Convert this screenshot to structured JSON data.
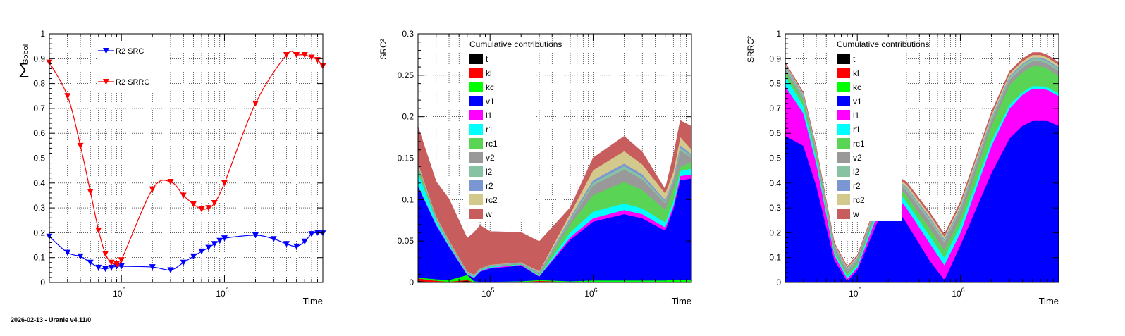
{
  "footer": "2026-02-13 - Uranie v4.11/0",
  "colors": {
    "src": "#0000ff",
    "srrc": "#ff0000",
    "t": "#000000",
    "kl": "#ff0000",
    "kc": "#00ff00",
    "v1": "#0000ff",
    "l1": "#ff00ff",
    "r1": "#00ffff",
    "rc1": "#59d454",
    "v2": "#999999",
    "l2": "#87c3a3",
    "r2": "#7b97d3",
    "rc2": "#d3c98c",
    "w": "#c75d5d"
  },
  "chart_data": [
    {
      "type": "line",
      "title": "",
      "xlabel": "Time",
      "ylabel": "∑ Sobol",
      "xscale": "log",
      "xlim": [
        20000,
        9000000
      ],
      "ylim": [
        0,
        1
      ],
      "yticks": [
        "0",
        "0.1",
        "0.2",
        "0.3",
        "0.4",
        "0.5",
        "0.6",
        "0.7",
        "0.8",
        "0.9",
        "1"
      ],
      "xticks": [
        [
          "10",
          "5"
        ],
        [
          "10",
          "6"
        ]
      ],
      "grid": true,
      "legend_position": "top-left",
      "series": [
        {
          "name": "R2 SRC",
          "x": [
            20000,
            30000,
            40000,
            50000,
            60000,
            70000,
            80000,
            90000,
            100000,
            200000,
            300000,
            400000,
            500000,
            600000,
            700000,
            800000,
            900000,
            1000000,
            2000000,
            3000000,
            4000000,
            5000000,
            6000000,
            7000000,
            8000000,
            9000000
          ],
          "y": [
            0.185,
            0.12,
            0.105,
            0.08,
            0.06,
            0.055,
            0.06,
            0.065,
            0.065,
            0.062,
            0.05,
            0.08,
            0.105,
            0.125,
            0.14,
            0.155,
            0.168,
            0.178,
            0.19,
            0.175,
            0.155,
            0.145,
            0.165,
            0.195,
            0.2,
            0.198
          ]
        },
        {
          "name": "R2 SRRC",
          "x": [
            20000,
            30000,
            40000,
            50000,
            60000,
            70000,
            80000,
            90000,
            100000,
            200000,
            300000,
            400000,
            500000,
            600000,
            700000,
            800000,
            1000000,
            2000000,
            4000000,
            5000000,
            6000000,
            7000000,
            8000000,
            9000000
          ],
          "y": [
            0.885,
            0.75,
            0.55,
            0.365,
            0.21,
            0.115,
            0.08,
            0.075,
            0.09,
            0.375,
            0.405,
            0.35,
            0.315,
            0.295,
            0.3,
            0.32,
            0.4,
            0.72,
            0.915,
            0.915,
            0.915,
            0.905,
            0.895,
            0.87
          ]
        }
      ]
    },
    {
      "type": "area",
      "stacked": true,
      "title": "",
      "xlabel": "Time",
      "ylabel": "SRC²",
      "xscale": "log",
      "xlim": [
        20000,
        9000000
      ],
      "ylim": [
        0,
        0.3
      ],
      "yticks": [
        "0",
        "0.05",
        "0.1",
        "0.15",
        "0.2",
        "0.25",
        "0.3"
      ],
      "xticks": [
        [
          "10",
          "5"
        ],
        [
          "10",
          "6"
        ]
      ],
      "grid": true,
      "legend_title": "Cumulative contributions",
      "legend_position": "top-left",
      "x": [
        20000,
        30000,
        40000,
        60000,
        70000,
        80000,
        100000,
        200000,
        300000,
        600000,
        1000000,
        2000000,
        3000000,
        5000000,
        6000000,
        7000000,
        9000000
      ],
      "series": [
        {
          "name": "t",
          "values": [
            0.002,
            0.0,
            0.0,
            0.002,
            0.0,
            0.0,
            0.0,
            0.0,
            0.0,
            0.0,
            0.0,
            0.0,
            0.0,
            0.0,
            0.0,
            0.0,
            0.0
          ]
        },
        {
          "name": "kl",
          "values": [
            0.003,
            0.002,
            0.001,
            0.001,
            0.0005,
            0.0005,
            0.0005,
            0.0005,
            0.002,
            0.0005,
            0.0005,
            0.0005,
            0.0005,
            0.0005,
            0.0005,
            0.0005,
            0.0005
          ]
        },
        {
          "name": "kc",
          "values": [
            0.001,
            0.002,
            0.002,
            0.006,
            0.001,
            0.0005,
            0.0005,
            0.001,
            0.001,
            0.001,
            0.002,
            0.002,
            0.002,
            0.002,
            0.003,
            0.003,
            0.002
          ]
        },
        {
          "name": "v1",
          "values": [
            0.11,
            0.065,
            0.04,
            0.0,
            0.004,
            0.012,
            0.016,
            0.019,
            0.004,
            0.05,
            0.071,
            0.08,
            0.075,
            0.06,
            0.085,
            0.12,
            0.123
          ]
        },
        {
          "name": "l1",
          "values": [
            0.001,
            0.001,
            0.001,
            0.001,
            0.0005,
            0.0005,
            0.001,
            0.001,
            0.0005,
            0.003,
            0.004,
            0.005,
            0.005,
            0.004,
            0.004,
            0.005,
            0.005
          ]
        },
        {
          "name": "r1",
          "values": [
            0.016,
            0.005,
            0.002,
            0.001,
            0.001,
            0.001,
            0.001,
            0.0005,
            0.001,
            0.006,
            0.008,
            0.008,
            0.007,
            0.006,
            0.006,
            0.006,
            0.007
          ]
        },
        {
          "name": "rc1",
          "values": [
            0.005,
            0.001,
            0.001,
            0.0005,
            0.0005,
            0.0005,
            0.0005,
            0.0005,
            0.001,
            0.01,
            0.02,
            0.026,
            0.022,
            0.015,
            0.015,
            0.005,
            0.008
          ]
        },
        {
          "name": "v2",
          "values": [
            0.002,
            0.001,
            0.001,
            0.0005,
            0.0005,
            0.0005,
            0.0005,
            0.0005,
            0.001,
            0.004,
            0.012,
            0.015,
            0.013,
            0.008,
            0.008,
            0.02,
            0.005
          ]
        },
        {
          "name": "l2",
          "values": [
            0.001,
            0.001,
            0.001,
            0.0005,
            0.0005,
            0.0005,
            0.0005,
            0.0005,
            0.001,
            0.002,
            0.003,
            0.004,
            0.003,
            0.002,
            0.002,
            0.003,
            0.002
          ]
        },
        {
          "name": "r2",
          "values": [
            0.001,
            0.001,
            0.001,
            0.0005,
            0.0005,
            0.0005,
            0.0005,
            0.0005,
            0.001,
            0.002,
            0.003,
            0.003,
            0.003,
            0.002,
            0.002,
            0.003,
            0.002
          ]
        },
        {
          "name": "rc2",
          "values": [
            0.002,
            0.001,
            0.001,
            0.0005,
            0.0005,
            0.0005,
            0.0005,
            0.0005,
            0.001,
            0.005,
            0.012,
            0.015,
            0.012,
            0.008,
            0.008,
            0.01,
            0.006
          ]
        },
        {
          "name": "w",
          "values": [
            0.044,
            0.042,
            0.05,
            0.04,
            0.051,
            0.052,
            0.04,
            0.036,
            0.036,
            0.007,
            0.015,
            0.018,
            0.015,
            0.005,
            0.02,
            0.02,
            0.028
          ]
        }
      ]
    },
    {
      "type": "area",
      "stacked": true,
      "title": "",
      "xlabel": "Time",
      "ylabel": "SRRC²",
      "xscale": "log",
      "xlim": [
        20000,
        9000000
      ],
      "ylim": [
        0,
        1
      ],
      "yticks": [
        "0",
        "0.1",
        "0.2",
        "0.3",
        "0.4",
        "0.5",
        "0.6",
        "0.7",
        "0.8",
        "0.9",
        "1"
      ],
      "xticks": [
        [
          "10",
          "5"
        ],
        [
          "10",
          "6"
        ]
      ],
      "grid": true,
      "legend_title": "Cumulative contributions",
      "legend_position": "top-left",
      "x": [
        20000,
        30000,
        40000,
        60000,
        80000,
        100000,
        200000,
        300000,
        500000,
        700000,
        1000000,
        2000000,
        3000000,
        4000000,
        5000000,
        6000000,
        7000000,
        9000000
      ],
      "series": [
        {
          "name": "t",
          "values": [
            0.0,
            0.0,
            0.0,
            0.0,
            0.0,
            0.0,
            0.0,
            0.0,
            0.0,
            0.0,
            0.0,
            0.0,
            0.0,
            0.0,
            0.0,
            0.0,
            0.0,
            0.0
          ]
        },
        {
          "name": "kl",
          "values": [
            0.0,
            0.0,
            0.0,
            0.0,
            0.0,
            0.0,
            0.0,
            0.0,
            0.0,
            0.0,
            0.0,
            0.0,
            0.0,
            0.0,
            0.0,
            0.0,
            0.0,
            0.0
          ]
        },
        {
          "name": "kc",
          "values": [
            0.002,
            0.002,
            0.002,
            0.002,
            0.002,
            0.002,
            0.002,
            0.002,
            0.002,
            0.002,
            0.002,
            0.002,
            0.002,
            0.002,
            0.002,
            0.002,
            0.002,
            0.002
          ]
        },
        {
          "name": "v1",
          "values": [
            0.588,
            0.548,
            0.388,
            0.088,
            0.003,
            0.048,
            0.348,
            0.238,
            0.088,
            0.008,
            0.148,
            0.438,
            0.578,
            0.628,
            0.648,
            0.648,
            0.648,
            0.628
          ]
        },
        {
          "name": "l1",
          "values": [
            0.2,
            0.13,
            0.09,
            0.02,
            0.01,
            0.01,
            0.04,
            0.06,
            0.07,
            0.06,
            0.05,
            0.11,
            0.12,
            0.125,
            0.13,
            0.13,
            0.125,
            0.12
          ]
        },
        {
          "name": "r1",
          "values": [
            0.04,
            0.03,
            0.02,
            0.01,
            0.01,
            0.01,
            0.02,
            0.025,
            0.03,
            0.03,
            0.03,
            0.02,
            0.015,
            0.01,
            0.01,
            0.01,
            0.01,
            0.01
          ]
        },
        {
          "name": "rc1",
          "values": [
            0.02,
            0.02,
            0.015,
            0.01,
            0.01,
            0.01,
            0.01,
            0.025,
            0.03,
            0.03,
            0.03,
            0.06,
            0.08,
            0.08,
            0.08,
            0.08,
            0.075,
            0.07
          ]
        },
        {
          "name": "v2",
          "values": [
            0.01,
            0.01,
            0.01,
            0.01,
            0.01,
            0.01,
            0.01,
            0.02,
            0.03,
            0.03,
            0.03,
            0.02,
            0.02,
            0.02,
            0.02,
            0.02,
            0.02,
            0.02
          ]
        },
        {
          "name": "l2",
          "values": [
            0.01,
            0.01,
            0.005,
            0.005,
            0.005,
            0.005,
            0.005,
            0.01,
            0.01,
            0.01,
            0.01,
            0.01,
            0.01,
            0.01,
            0.01,
            0.01,
            0.01,
            0.01
          ]
        },
        {
          "name": "r2",
          "values": [
            0.005,
            0.005,
            0.005,
            0.005,
            0.005,
            0.005,
            0.005,
            0.005,
            0.005,
            0.005,
            0.005,
            0.005,
            0.005,
            0.005,
            0.005,
            0.005,
            0.005,
            0.005
          ]
        },
        {
          "name": "rc2",
          "values": [
            0.005,
            0.005,
            0.005,
            0.005,
            0.005,
            0.005,
            0.005,
            0.01,
            0.01,
            0.01,
            0.01,
            0.01,
            0.01,
            0.01,
            0.01,
            0.01,
            0.01,
            0.01
          ]
        },
        {
          "name": "w",
          "values": [
            0.005,
            0.005,
            0.005,
            0.005,
            0.005,
            0.005,
            0.005,
            0.01,
            0.01,
            0.01,
            0.01,
            0.01,
            0.01,
            0.01,
            0.01,
            0.01,
            0.01,
            0.01
          ]
        }
      ]
    }
  ]
}
